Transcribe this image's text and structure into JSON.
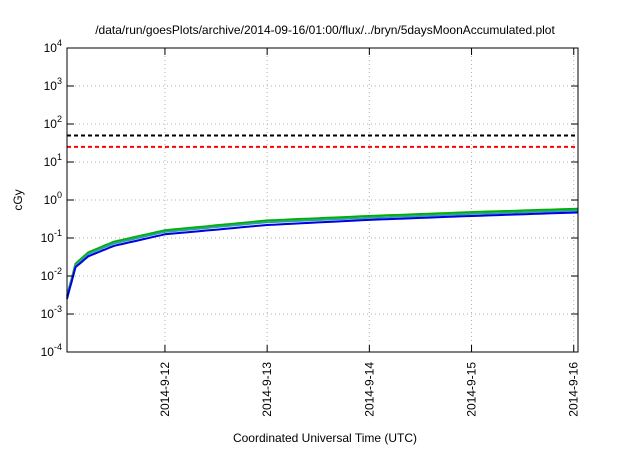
{
  "chart_data": {
    "type": "line",
    "title": "/data/run/goesPlots/archive/2014-09-16/01:00/flux/../bryn/5daysMoonAccumulated.plot",
    "xlabel": "Coordinated Universal Time (UTC)",
    "ylabel": "cGy",
    "x_scale": "time",
    "y_scale": "log",
    "xlim": [
      "2014-09-11T01:00",
      "2014-09-16T01:00"
    ],
    "ylim_exponents": [
      -4,
      4
    ],
    "x_ticks": [
      "2014-9-12",
      "2014-9-13",
      "2014-9-14",
      "2014-9-15",
      "2014-9-16"
    ],
    "y_ticks": [
      {
        "base": "10",
        "exp": "-4"
      },
      {
        "base": "10",
        "exp": "-3"
      },
      {
        "base": "10",
        "exp": "-2"
      },
      {
        "base": "10",
        "exp": "-1"
      },
      {
        "base": "10",
        "exp": "0"
      },
      {
        "base": "10",
        "exp": "1"
      },
      {
        "base": "10",
        "exp": "2"
      },
      {
        "base": "10",
        "exp": "3"
      },
      {
        "base": "10",
        "exp": "4"
      }
    ],
    "grid": true,
    "series": [
      {
        "color": "#00b000",
        "x": [
          "2014-09-11T01:00",
          "2014-09-11T03:00",
          "2014-09-11T06:00",
          "2014-09-11T12:00",
          "2014-09-12T00:00",
          "2014-09-13T00:00",
          "2014-09-14T00:00",
          "2014-09-15T00:00",
          "2014-09-16T01:00"
        ],
        "y": [
          0.003,
          0.021,
          0.042,
          0.08,
          0.16,
          0.29,
          0.38,
          0.48,
          0.59
        ]
      },
      {
        "color": "#2aa0a0",
        "x": [
          "2014-09-11T01:00",
          "2014-09-11T03:00",
          "2014-09-11T06:00",
          "2014-09-11T12:00",
          "2014-09-12T00:00",
          "2014-09-13T00:00",
          "2014-09-14T00:00",
          "2014-09-15T00:00",
          "2014-09-16T01:00"
        ],
        "y": [
          0.0028,
          0.019,
          0.038,
          0.072,
          0.145,
          0.26,
          0.34,
          0.43,
          0.53
        ]
      },
      {
        "color": "#0000e0",
        "x": [
          "2014-09-11T01:00",
          "2014-09-11T03:00",
          "2014-09-11T06:00",
          "2014-09-11T12:00",
          "2014-09-12T00:00",
          "2014-09-13T00:00",
          "2014-09-14T00:00",
          "2014-09-15T00:00",
          "2014-09-16T01:00"
        ],
        "y": [
          0.0025,
          0.017,
          0.033,
          0.062,
          0.125,
          0.22,
          0.3,
          0.38,
          0.47
        ]
      }
    ],
    "reference_lines": [
      {
        "y": 50,
        "color": "#000000",
        "dash": "dashed"
      },
      {
        "y": 25,
        "color": "#ff0000",
        "dash": "dashed"
      }
    ]
  }
}
